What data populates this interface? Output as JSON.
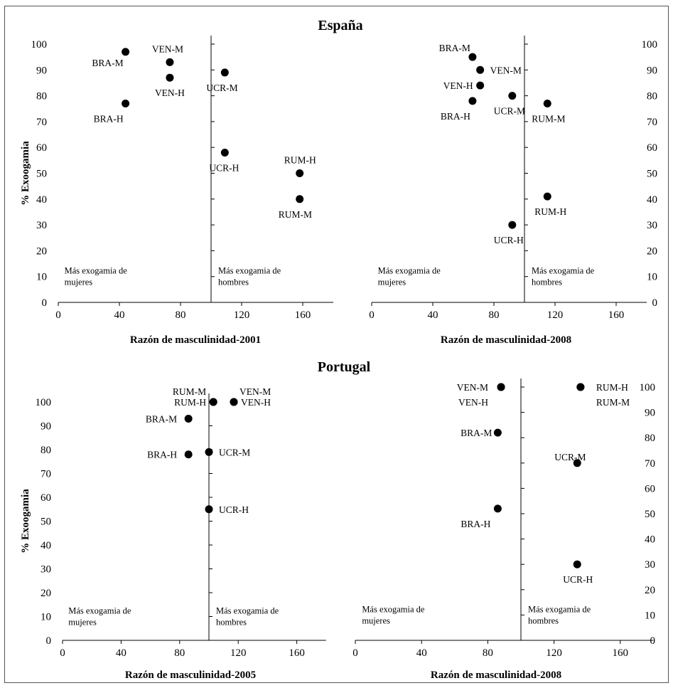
{
  "regions": [
    {
      "title": "España"
    },
    {
      "title": "Portugal"
    }
  ],
  "notes": {
    "left_line1": "Más exogamia de",
    "left_line2": "mujeres",
    "right_line1": "Más exogamia de",
    "right_line2": "hombres"
  },
  "chart_data": [
    {
      "type": "scatter",
      "region": "España",
      "xlabel": "Razón de masculinidad-2001",
      "ylabel": "% Exoogamia",
      "xlim": [
        0,
        180
      ],
      "ylim": [
        0,
        100
      ],
      "xticks": [
        0,
        40,
        80,
        120,
        160
      ],
      "yticks": [
        0,
        10,
        20,
        30,
        40,
        50,
        60,
        70,
        80,
        90,
        100
      ],
      "y_axis_side": "left",
      "divider_x": 100,
      "points": [
        {
          "label": "BRA-M",
          "x": 44,
          "y": 97
        },
        {
          "label": "BRA-H",
          "x": 44,
          "y": 77
        },
        {
          "label": "VEN-M",
          "x": 73,
          "y": 93
        },
        {
          "label": "VEN-H",
          "x": 73,
          "y": 87
        },
        {
          "label": "UCR-M",
          "x": 109,
          "y": 89
        },
        {
          "label": "UCR-H",
          "x": 109,
          "y": 58
        },
        {
          "label": "RUM-H",
          "x": 158,
          "y": 50
        },
        {
          "label": "RUM-M",
          "x": 158,
          "y": 40
        }
      ]
    },
    {
      "type": "scatter",
      "region": "España",
      "xlabel": "Razón de masculinidad-2008",
      "ylabel": "",
      "xlim": [
        0,
        180
      ],
      "ylim": [
        0,
        100
      ],
      "xticks": [
        0,
        40,
        80,
        120,
        160
      ],
      "yticks": [
        0,
        10,
        20,
        30,
        40,
        50,
        60,
        70,
        80,
        90,
        100
      ],
      "y_axis_side": "right",
      "divider_x": 100,
      "points": [
        {
          "label": "BRA-M",
          "x": 66,
          "y": 95
        },
        {
          "label": "VEN-M",
          "x": 71,
          "y": 90
        },
        {
          "label": "VEN-H",
          "x": 71,
          "y": 84
        },
        {
          "label": "BRA-H",
          "x": 66,
          "y": 78
        },
        {
          "label": "UCR-M",
          "x": 92,
          "y": 80
        },
        {
          "label": "RUM-M",
          "x": 115,
          "y": 77
        },
        {
          "label": "RUM-H",
          "x": 115,
          "y": 41
        },
        {
          "label": "UCR-H",
          "x": 92,
          "y": 30
        }
      ]
    },
    {
      "type": "scatter",
      "region": "Portugal",
      "xlabel": "Razón de masculinidad-2005",
      "ylabel": "% Exoogamia",
      "xlim": [
        0,
        180
      ],
      "ylim": [
        0,
        100
      ],
      "xticks": [
        0,
        40,
        80,
        120,
        160
      ],
      "yticks": [
        0,
        10,
        20,
        30,
        40,
        50,
        60,
        70,
        80,
        90,
        100
      ],
      "y_axis_side": "left",
      "divider_x": 100,
      "points": [
        {
          "label": "RUM-M",
          "x": 103,
          "y": 100
        },
        {
          "label": "RUM-H",
          "x": 103,
          "y": 100
        },
        {
          "label": "VEN-M",
          "x": 117,
          "y": 100
        },
        {
          "label": "VEN-H",
          "x": 117,
          "y": 100
        },
        {
          "label": "BRA-M",
          "x": 86,
          "y": 93
        },
        {
          "label": "BRA-H",
          "x": 86,
          "y": 78
        },
        {
          "label": "UCR-M",
          "x": 100,
          "y": 79
        },
        {
          "label": "UCR-H",
          "x": 100,
          "y": 55
        }
      ]
    },
    {
      "type": "scatter",
      "region": "Portugal",
      "xlabel": "Razón de masculinidad-2008",
      "ylabel": "",
      "xlim": [
        0,
        180
      ],
      "ylim": [
        0,
        100
      ],
      "xticks": [
        0,
        40,
        80,
        120,
        160
      ],
      "yticks": [
        0,
        10,
        20,
        30,
        40,
        50,
        60,
        70,
        80,
        90,
        100
      ],
      "y_axis_side": "right",
      "divider_x": 100,
      "points": [
        {
          "label": "VEN-M",
          "x": 88,
          "y": 100
        },
        {
          "label": "VEN-H",
          "x": 88,
          "y": 100
        },
        {
          "label": "BRA-M",
          "x": 86,
          "y": 82
        },
        {
          "label": "BRA-H",
          "x": 86,
          "y": 52
        },
        {
          "label": "RUM-H",
          "x": 136,
          "y": 100
        },
        {
          "label": "RUM-M",
          "x": 136,
          "y": 100
        },
        {
          "label": "UCR-M",
          "x": 134,
          "y": 70
        },
        {
          "label": "UCR-H",
          "x": 134,
          "y": 30
        }
      ]
    }
  ]
}
